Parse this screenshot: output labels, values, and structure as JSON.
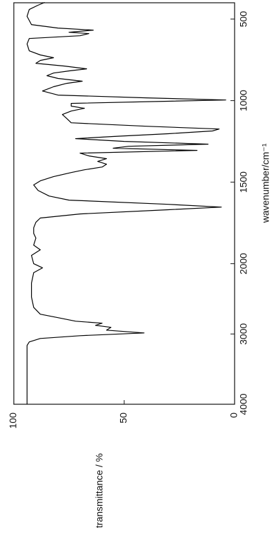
{
  "chart_data": {
    "type": "line",
    "x_label": "wavenumber/cm⁻¹",
    "y_label": "transmittance / %",
    "color": "#000000",
    "x": [
      4000,
      3951,
      3360,
      3163,
      3113,
      3064,
      3025,
      2985,
      2946,
      2906,
      2877,
      2847,
      2818,
      2768,
      2719,
      2621,
      2473,
      2276,
      2128,
      2059,
      2000,
      1949,
      1915,
      1886,
      1843,
      1814,
      1780,
      1746,
      1720,
      1695,
      1669,
      1653,
      1636,
      1610,
      1585,
      1551,
      1517,
      1492,
      1466,
      1441,
      1424,
      1407,
      1390,
      1373,
      1356,
      1339,
      1322,
      1305,
      1292,
      1280,
      1267,
      1250,
      1233,
      1220,
      1203,
      1186,
      1174,
      1157,
      1136,
      1110,
      1085,
      1064,
      1047,
      1034,
      1017,
      1004,
      996,
      983,
      966,
      941,
      915,
      894,
      881,
      864,
      847,
      831,
      818,
      805,
      788,
      771,
      754,
      737,
      720,
      695,
      653,
      619,
      602,
      589,
      581,
      568,
      555,
      534,
      483,
      441,
      415,
      398
    ],
    "values": [
      94,
      94,
      94,
      94,
      93,
      88,
      70,
      41,
      58,
      56,
      63,
      60,
      72,
      80,
      88,
      91,
      92,
      92,
      91,
      87,
      91,
      92,
      88,
      91,
      90,
      91,
      91,
      90,
      88,
      70,
      30,
      6,
      30,
      75,
      84,
      89,
      91,
      88,
      82,
      74,
      68,
      60,
      58,
      62,
      58,
      66,
      70,
      17,
      55,
      48,
      12,
      50,
      72,
      55,
      30,
      10,
      7,
      40,
      74,
      76,
      78,
      74,
      68,
      74,
      74,
      30,
      4,
      40,
      80,
      87,
      82,
      76,
      69,
      80,
      85,
      82,
      75,
      67,
      77,
      90,
      88,
      82,
      88,
      93,
      94,
      93,
      70,
      66,
      75,
      64,
      80,
      92,
      94,
      93,
      89,
      86
    ],
    "xlim": [
      4000,
      400
    ],
    "xticks": [
      4000,
      3000,
      2000,
      1500,
      1000,
      500
    ],
    "x_scale_break": 2000,
    "ylim": [
      0,
      100
    ],
    "yticks": [
      0,
      50,
      100
    ]
  }
}
